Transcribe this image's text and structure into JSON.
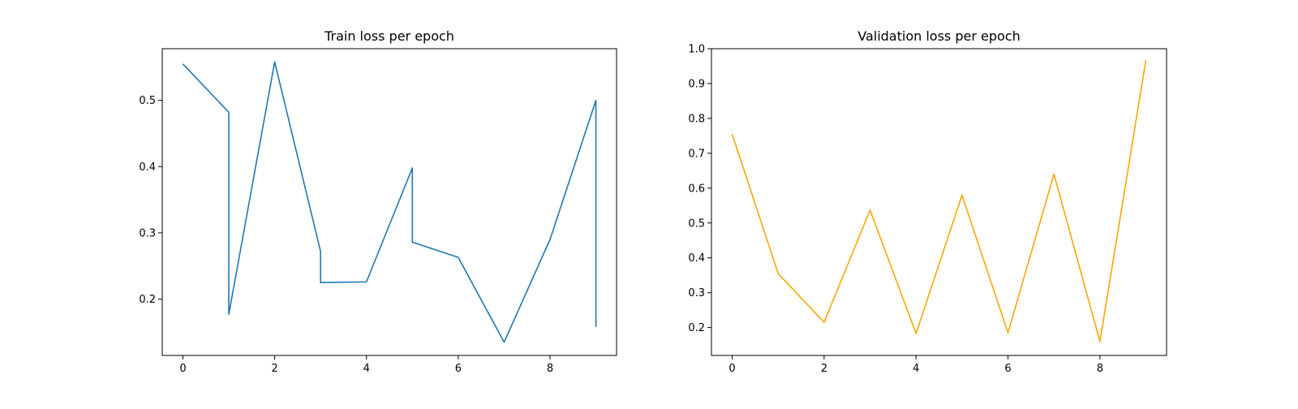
{
  "chart_data": [
    {
      "type": "line",
      "title": "Train loss per epoch",
      "xlabel": "",
      "ylabel": "",
      "xlim": [
        -0.45,
        9.45
      ],
      "ylim": [
        0.115,
        0.578
      ],
      "x_ticks": [
        0,
        2,
        4,
        6,
        8
      ],
      "y_ticks": [
        0.2,
        0.3,
        0.4,
        0.5
      ],
      "grid": false,
      "color": "#1f77b4",
      "series": [
        {
          "x": [
            0,
            1,
            1,
            2,
            3,
            3,
            4,
            5,
            5,
            6,
            7,
            8,
            9,
            9
          ],
          "y": [
            0.555,
            0.482,
            0.177,
            0.558,
            0.272,
            0.225,
            0.226,
            0.398,
            0.286,
            0.263,
            0.135,
            0.29,
            0.5,
            0.158
          ]
        }
      ]
    },
    {
      "type": "line",
      "title": "Validation loss per epoch",
      "xlabel": "",
      "ylabel": "",
      "xlim": [
        -0.45,
        9.45
      ],
      "ylim": [
        0.12,
        1.0
      ],
      "x_ticks": [
        0,
        2,
        4,
        6,
        8
      ],
      "y_ticks": [
        0.2,
        0.3,
        0.4,
        0.5,
        0.6,
        0.7,
        0.8,
        0.9,
        1.0
      ],
      "grid": false,
      "color": "#ffa500",
      "series": [
        {
          "x": [
            0,
            1,
            2,
            3,
            4,
            5,
            6,
            7,
            8,
            9
          ],
          "y": [
            0.755,
            0.355,
            0.215,
            0.537,
            0.183,
            0.58,
            0.185,
            0.64,
            0.16,
            0.967
          ]
        }
      ]
    }
  ]
}
